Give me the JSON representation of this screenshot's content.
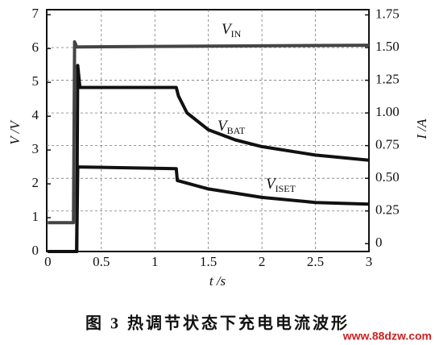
{
  "chart_data": {
    "type": "line",
    "caption": "图 3   热调节状态下充电电流波形",
    "watermark": "www.88dzw.com",
    "xlabel": "t /s",
    "ylabel": "V /V",
    "y2label": "I /A",
    "xlim": [
      -0.01,
      3
    ],
    "xticks": [
      0,
      0.5,
      1,
      1.5,
      2,
      2.5,
      3
    ],
    "ylim": [
      0,
      7.15
    ],
    "yticks": [
      0,
      1,
      2,
      3,
      4,
      5,
      6,
      7
    ],
    "y2lim": [
      -0.06,
      1.79
    ],
    "y2ticks": [
      0,
      0.25,
      {
        "value": 0.5,
        "label": "0.50"
      },
      0.75,
      {
        "value": 1,
        "label": "1.00"
      },
      1.25,
      {
        "value": 1.5,
        "label": "1.50"
      },
      1.75
    ],
    "grid": true,
    "series": [
      {
        "name": "VIN",
        "color": "#444444",
        "x": [
          0,
          0.24,
          0.25,
          0.27,
          3
        ],
        "values": [
          0.85,
          0.85,
          6.2,
          6.05,
          6.1
        ]
      },
      {
        "name": "VBAT",
        "color": "#111111",
        "x": [
          0,
          0.27,
          0.28,
          0.3,
          1.0,
          1.2,
          1.22,
          1.3,
          1.5,
          1.75,
          2,
          2.5,
          3
        ],
        "values": [
          0,
          0,
          5.5,
          4.85,
          4.85,
          4.85,
          4.6,
          4.1,
          3.6,
          3.3,
          3.1,
          2.85,
          2.7
        ]
      },
      {
        "name": "VISET",
        "color": "#111111",
        "x": [
          0,
          0.27,
          0.28,
          1.2,
          1.21,
          1.5,
          2,
          2.5,
          3
        ],
        "values": [
          0,
          0,
          2.5,
          2.45,
          2.1,
          1.85,
          1.6,
          1.45,
          1.4
        ]
      }
    ]
  }
}
